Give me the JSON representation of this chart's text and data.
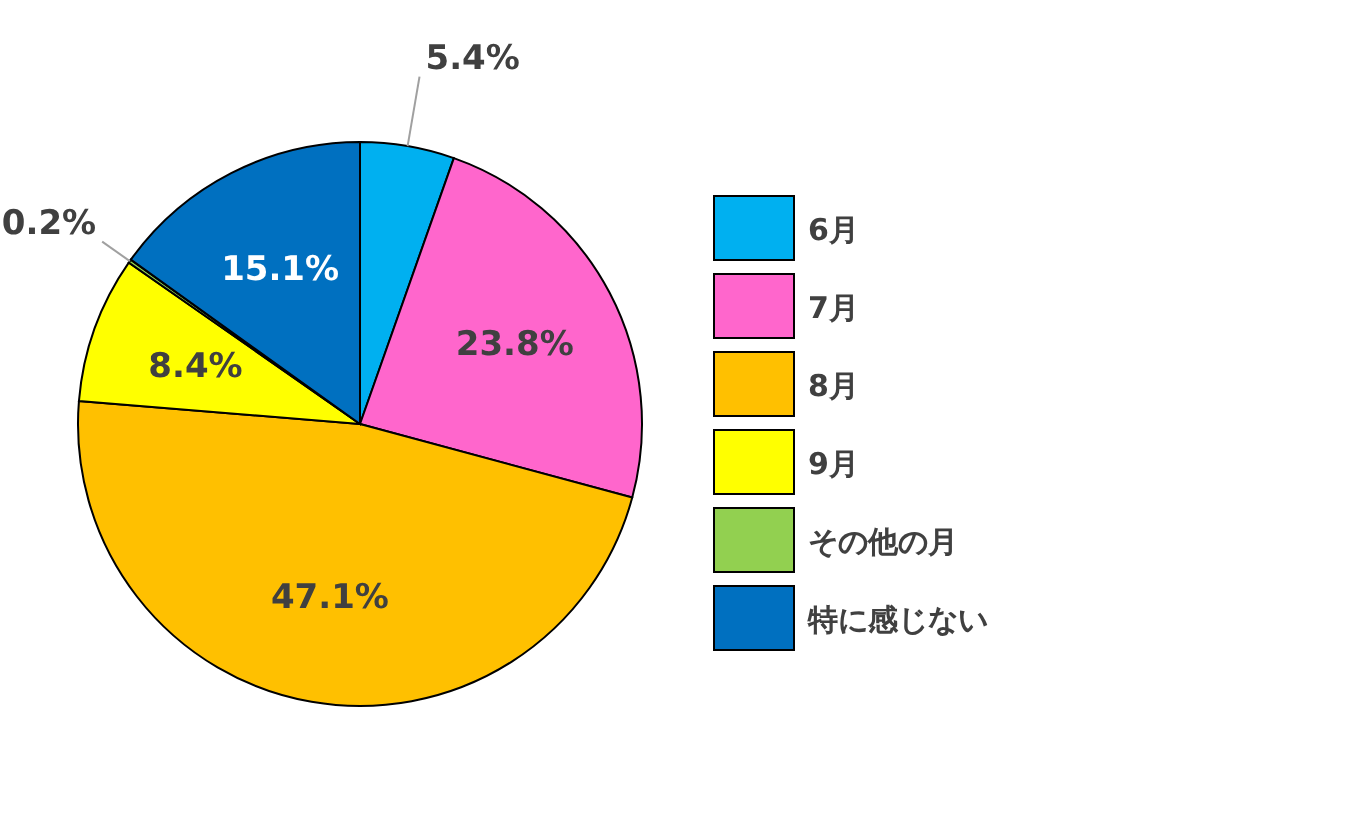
{
  "chart_data": {
    "type": "pie",
    "categories": [
      "6月",
      "7月",
      "8月",
      "9月",
      "その他の月",
      "特に感じない"
    ],
    "values": [
      5.4,
      23.8,
      47.1,
      8.4,
      0.2,
      15.1
    ],
    "value_labels": [
      "5.4%",
      "23.8%",
      "47.1%",
      "8.4%",
      "0.2%",
      "15.1%"
    ],
    "colors": [
      "#00b0f0",
      "#ff66cc",
      "#ffc000",
      "#ffff00",
      "#92d050",
      "#0070c0"
    ],
    "legend": "right"
  }
}
